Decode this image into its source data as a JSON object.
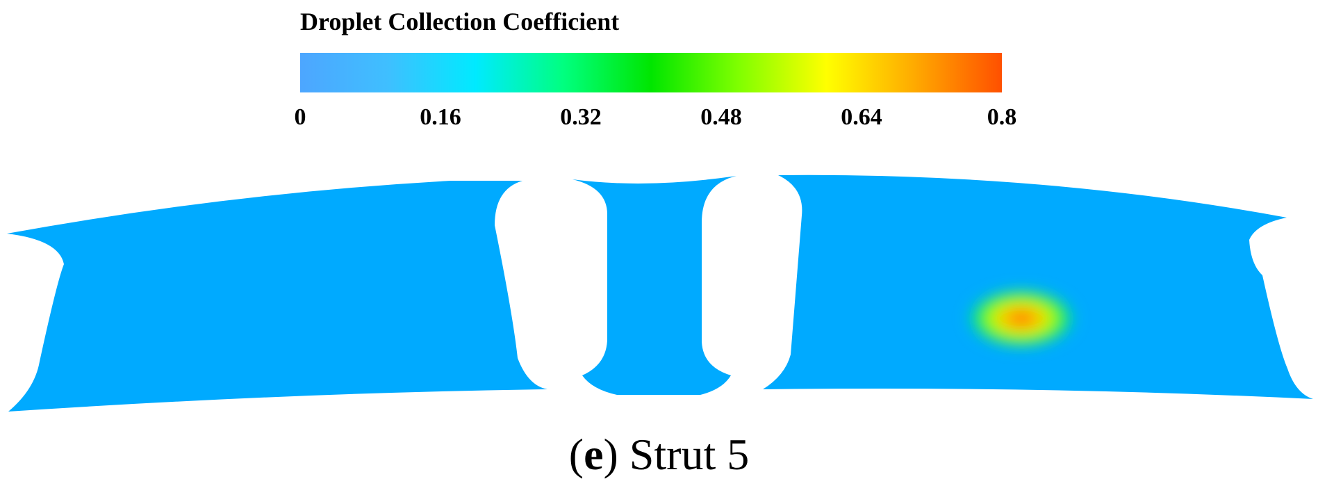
{
  "colorbar": {
    "title": "Droplet Collection Coefficient",
    "ticks": [
      "0",
      "0.16",
      "0.32",
      "0.48",
      "0.64",
      "0.8"
    ],
    "range": [
      0,
      0.8
    ],
    "colors": [
      "#4da6ff",
      "#3fbfff",
      "#00eaff",
      "#00ff80",
      "#00e600",
      "#80ff00",
      "#ffff00",
      "#ffaa00",
      "#ff5000"
    ]
  },
  "domain": {
    "base_color": "#00aaff",
    "hotspot": {
      "peak_value": 0.8,
      "colors": [
        "#ff5a00",
        "#ffcc00",
        "#aaff00",
        "#00ee55",
        "#00ddcc"
      ]
    }
  },
  "caption": {
    "open": "(",
    "letter": "e",
    "close": ")",
    "text": " Strut 5"
  }
}
